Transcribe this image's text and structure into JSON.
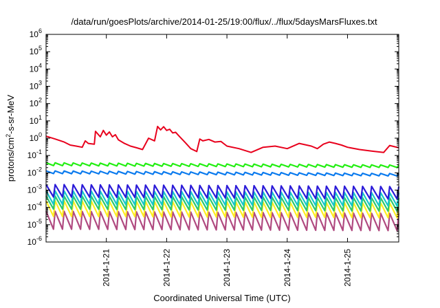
{
  "chart_data": {
    "type": "line",
    "title": "/data/run/goesPlots/archive/2014-01-25/19:00/flux/../flux/5daysMarsFluxes.txt",
    "xlabel": "Coordinated Universal Time (UTC)",
    "ylabel_parts": [
      "protons/cm",
      "2",
      "-s-sr-MeV"
    ],
    "yscale": "log",
    "ylim_exp": [
      -6,
      6
    ],
    "xlim_days": [
      0,
      5.85
    ],
    "x_ticks": [
      {
        "label": "2014-1-21",
        "day": 1.0
      },
      {
        "label": "2014-1-22",
        "day": 2.0
      },
      {
        "label": "2014-1-23",
        "day": 3.0
      },
      {
        "label": "2014-1-24",
        "day": 4.0
      },
      {
        "label": "2014-1-25",
        "day": 5.0
      }
    ],
    "y_ticks": [
      {
        "base": "10",
        "exp": "-6"
      },
      {
        "base": "10",
        "exp": "-5"
      },
      {
        "base": "10",
        "exp": "-4"
      },
      {
        "base": "10",
        "exp": "-3"
      },
      {
        "base": "10",
        "exp": "-2"
      },
      {
        "base": "10",
        "exp": "-1"
      },
      {
        "base": "10",
        "exp": "0"
      },
      {
        "base": "10",
        "exp": "1"
      },
      {
        "base": "10",
        "exp": "2"
      },
      {
        "base": "10",
        "exp": "3"
      },
      {
        "base": "10",
        "exp": "4"
      },
      {
        "base": "10",
        "exp": "5"
      },
      {
        "base": "10",
        "exp": "6"
      }
    ],
    "grid": false,
    "legend": "none",
    "series": [
      {
        "color": "#e8001c",
        "style": "trend",
        "x": [
          0,
          0.15,
          0.3,
          0.4,
          0.5,
          0.6,
          0.65,
          0.7,
          0.8,
          0.82,
          0.9,
          0.95,
          1.0,
          1.05,
          1.1,
          1.15,
          1.2,
          1.3,
          1.4,
          1.5,
          1.6,
          1.7,
          1.8,
          1.85,
          1.9,
          1.95,
          2.0,
          2.05,
          2.1,
          2.15,
          2.2,
          2.3,
          2.4,
          2.5,
          2.55,
          2.6,
          2.7,
          2.8,
          2.9,
          3.0,
          3.2,
          3.4,
          3.6,
          3.8,
          4.0,
          4.2,
          4.4,
          4.5,
          4.6,
          4.7,
          4.8,
          4.9,
          5.0,
          5.2,
          5.4,
          5.6,
          5.7,
          5.85
        ],
        "y": [
          1.3,
          0.9,
          0.6,
          0.4,
          0.35,
          0.3,
          0.7,
          0.5,
          0.45,
          2.5,
          1.2,
          2.8,
          1.5,
          2.3,
          1.2,
          1.6,
          0.8,
          0.5,
          0.35,
          0.28,
          0.22,
          1.0,
          0.7,
          4.8,
          3.0,
          4.6,
          2.8,
          3.3,
          2.0,
          2.2,
          1.4,
          0.6,
          0.25,
          0.17,
          0.9,
          0.7,
          0.85,
          0.6,
          0.65,
          0.35,
          0.25,
          0.15,
          0.3,
          0.35,
          0.25,
          0.5,
          0.35,
          0.25,
          0.45,
          0.6,
          0.5,
          0.4,
          0.3,
          0.22,
          0.18,
          0.15,
          0.38,
          0.28
        ]
      },
      {
        "color": "#22ee11",
        "style": "sawtooth",
        "x_range": [
          0,
          5.85
        ],
        "teeth": 39,
        "high": [
          0.038,
          0.028
        ],
        "low": [
          0.026,
          0.02
        ]
      },
      {
        "color": "#0a7aee",
        "style": "sawtooth",
        "x_range": [
          0,
          5.85
        ],
        "teeth": 39,
        "high": [
          0.013,
          0.009
        ],
        "low": [
          0.009,
          0.0065
        ]
      },
      {
        "color": "#2a1ad8",
        "style": "sawtooth",
        "x_range": [
          0,
          5.85
        ],
        "teeth": 39,
        "high": [
          0.0021,
          0.0016
        ],
        "low": [
          0.0004,
          0.0003
        ]
      },
      {
        "color": "#17c8c8",
        "style": "sawtooth",
        "x_range": [
          0,
          5.85
        ],
        "teeth": 39,
        "high": [
          0.0009,
          0.0007
        ],
        "low": [
          0.00015,
          0.00012
        ]
      },
      {
        "color": "#2cc96b",
        "style": "sawtooth",
        "x_range": [
          0,
          5.85
        ],
        "teeth": 39,
        "high": [
          0.00045,
          0.00035
        ],
        "low": [
          8e-05,
          6e-05
        ]
      },
      {
        "color": "#ffee22",
        "style": "sawtooth",
        "x_range": [
          0,
          5.85
        ],
        "teeth": 39,
        "high": [
          0.00024,
          0.00018
        ],
        "low": [
          3e-05,
          2.5e-05
        ]
      },
      {
        "color": "#b04a80",
        "style": "sawtooth",
        "x_range": [
          0,
          5.85
        ],
        "teeth": 39,
        "high": [
          6e-05,
          4.5e-05
        ],
        "low": [
          5.5e-06,
          4.5e-06
        ]
      }
    ]
  }
}
